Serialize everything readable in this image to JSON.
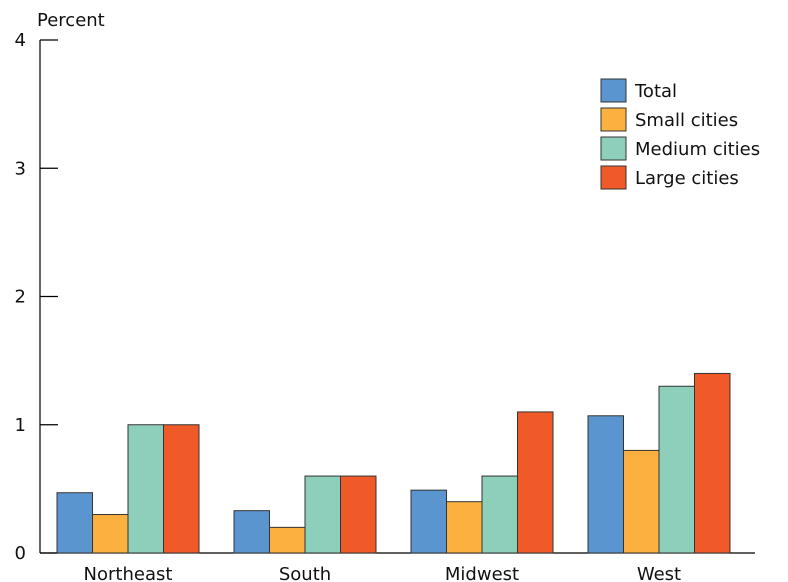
{
  "chart_data": {
    "type": "bar",
    "title": "",
    "xlabel": "",
    "ylabel": "Percent",
    "ylim": [
      0,
      4
    ],
    "yticks": [
      0,
      1,
      2,
      3,
      4
    ],
    "grid": false,
    "legend_position": "top-right",
    "categories": [
      "Northeast",
      "South",
      "Midwest",
      "West"
    ],
    "series": [
      {
        "name": "Total",
        "color": "#5b95cf",
        "values": [
          0.47,
          0.33,
          0.49,
          1.07
        ]
      },
      {
        "name": "Small cities",
        "color": "#fbb040",
        "values": [
          0.3,
          0.2,
          0.4,
          0.8
        ]
      },
      {
        "name": "Medium cities",
        "color": "#8ecfbb",
        "values": [
          1.0,
          0.6,
          0.6,
          1.3
        ]
      },
      {
        "name": "Large cities",
        "color": "#f05a28",
        "values": [
          1.0,
          0.6,
          1.1,
          1.4
        ]
      }
    ]
  }
}
